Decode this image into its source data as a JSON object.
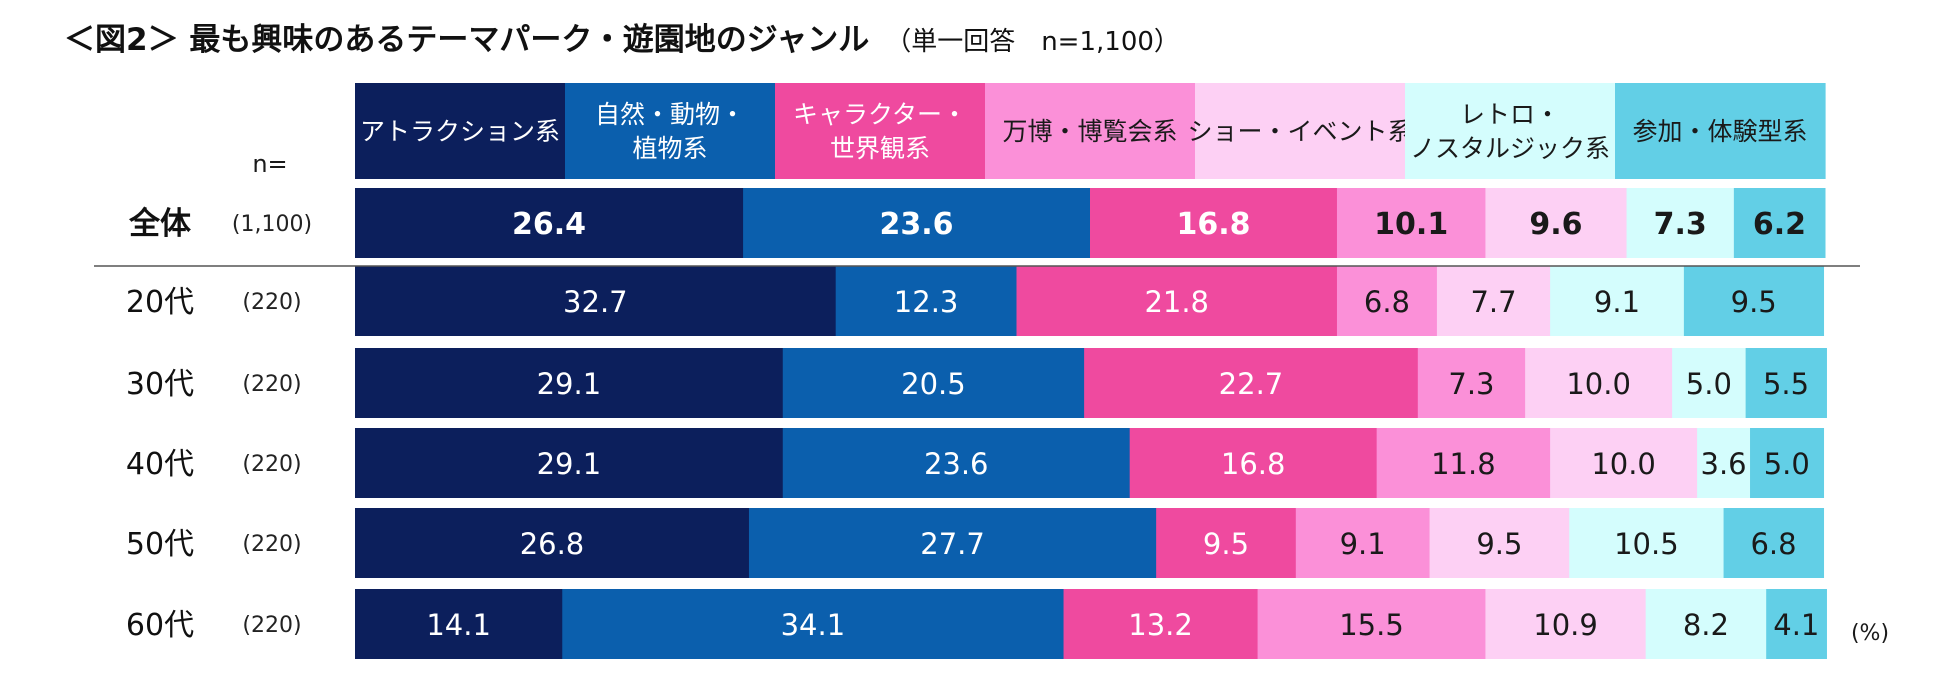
{
  "title": {
    "main": "＜図2＞ 最も興味のあるテーマパーク・遊園地のジャンル",
    "sub": "（単一回答　n=1,100）"
  },
  "n_header": "n=",
  "unit_label": "(%)",
  "colors": {
    "series": [
      "#0c1f5c",
      "#0b5fad",
      "#ef4a9f",
      "#fb90d8",
      "#fdd0f4",
      "#d4fdfd",
      "#62cfe6"
    ],
    "legend_text": [
      "#ffffff",
      "#ffffff",
      "#ffffff",
      "#1a1a1a",
      "#1a1a1a",
      "#1a1a1a",
      "#1a1a1a"
    ],
    "value_text": [
      "#ffffff",
      "#ffffff",
      "#ffffff",
      "#1a1a1a",
      "#1a1a1a",
      "#1a1a1a",
      "#1a1a1a"
    ]
  },
  "chart_data": {
    "type": "bar",
    "orientation": "horizontal",
    "stacked": true,
    "normalized_percent": true,
    "title": "＜図2＞ 最も興味のあるテーマパーク・遊園地のジャンル",
    "subtitle": "（単一回答　n=1,100）",
    "unit": "%",
    "xlim": [
      0,
      100
    ],
    "legend_position": "top",
    "categories": [
      "全体",
      "20代",
      "30代",
      "40代",
      "50代",
      "60代"
    ],
    "n": [
      "(1,100)",
      "(220)",
      "(220)",
      "(220)",
      "(220)",
      "(220)"
    ],
    "series": [
      {
        "name": "アトラクション系",
        "label_lines": [
          "アトラクション系"
        ],
        "values": [
          26.4,
          32.7,
          29.1,
          29.1,
          26.8,
          14.1
        ]
      },
      {
        "name": "自然・動物・植物系",
        "label_lines": [
          "自然・動物・",
          "植物系"
        ],
        "values": [
          23.6,
          12.3,
          20.5,
          23.6,
          27.7,
          34.1
        ]
      },
      {
        "name": "キャラクター・世界観系",
        "label_lines": [
          "キャラクター・",
          "世界観系"
        ],
        "values": [
          16.8,
          21.8,
          22.7,
          16.8,
          9.5,
          13.2
        ]
      },
      {
        "name": "万博・博覧会系",
        "label_lines": [
          "万博・博覧会系"
        ],
        "values": [
          10.1,
          6.8,
          7.3,
          11.8,
          9.1,
          15.5
        ]
      },
      {
        "name": "ショー・イベント系",
        "label_lines": [
          "ショー・イベント系"
        ],
        "values": [
          9.6,
          7.7,
          10.0,
          10.0,
          9.5,
          10.9
        ]
      },
      {
        "name": "レトロ・ノスタルジック系",
        "label_lines": [
          "レトロ・",
          "ノスタルジック系"
        ],
        "values": [
          7.3,
          9.1,
          5.0,
          3.6,
          10.5,
          8.2
        ]
      },
      {
        "name": "参加・体験型系",
        "label_lines": [
          "参加・体験型系"
        ],
        "values": [
          6.2,
          9.5,
          5.5,
          5.0,
          6.8,
          4.1
        ]
      }
    ]
  }
}
